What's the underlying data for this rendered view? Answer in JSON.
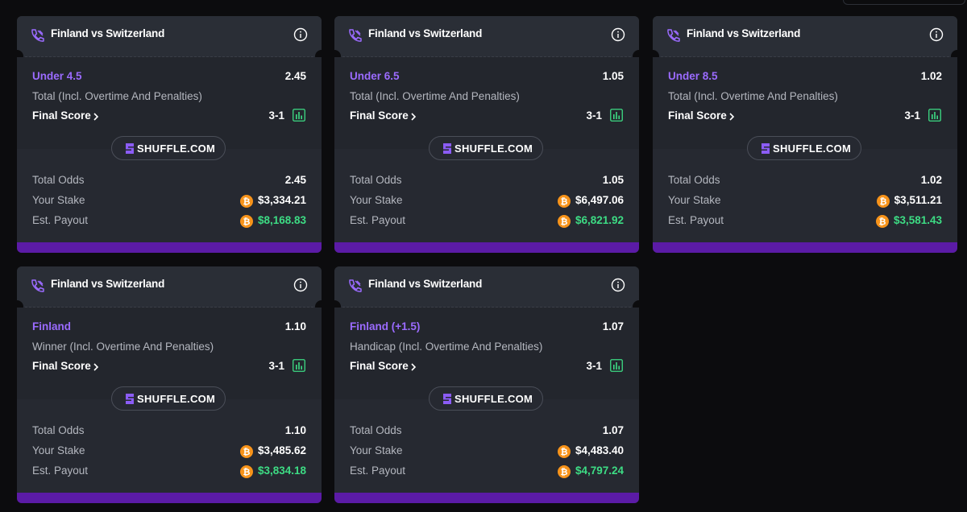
{
  "brand_color": "#5b1ba6",
  "accent_purple": "#9b6bff",
  "payout_green": "#3ddc84",
  "icons": {
    "ticket": "ticket-icon",
    "info": "info-icon",
    "chevron": "chevron-right-icon",
    "stats": "bar-chart-icon",
    "brand_logo": "shuffle-logo-icon",
    "currency": "bitcoin-coin-icon"
  },
  "cards": [
    {
      "match": "Finland vs Switzerland",
      "selection": "Under 4.5",
      "selection_odds": "2.45",
      "market": "Total (Incl. Overtime And Penalties)",
      "final_score_label": "Final Score",
      "final_score": "3-1",
      "brand": "SHUFFLE.COM",
      "total_odds_label": "Total Odds",
      "total_odds": "2.45",
      "stake_label": "Your Stake",
      "stake": "$3,334.21",
      "payout_label": "Est. Payout",
      "payout": "$8,168.83"
    },
    {
      "match": "Finland vs Switzerland",
      "selection": "Under 6.5",
      "selection_odds": "1.05",
      "market": "Total (Incl. Overtime And Penalties)",
      "final_score_label": "Final Score",
      "final_score": "3-1",
      "brand": "SHUFFLE.COM",
      "total_odds_label": "Total Odds",
      "total_odds": "1.05",
      "stake_label": "Your Stake",
      "stake": "$6,497.06",
      "payout_label": "Est. Payout",
      "payout": "$6,821.92"
    },
    {
      "match": "Finland vs Switzerland",
      "selection": "Under 8.5",
      "selection_odds": "1.02",
      "market": "Total (Incl. Overtime And Penalties)",
      "final_score_label": "Final Score",
      "final_score": "3-1",
      "brand": "SHUFFLE.COM",
      "total_odds_label": "Total Odds",
      "total_odds": "1.02",
      "stake_label": "Your Stake",
      "stake": "$3,511.21",
      "payout_label": "Est. Payout",
      "payout": "$3,581.43"
    },
    {
      "match": "Finland vs Switzerland",
      "selection": "Finland",
      "selection_odds": "1.10",
      "market": "Winner (Incl. Overtime And Penalties)",
      "final_score_label": "Final Score",
      "final_score": "3-1",
      "brand": "SHUFFLE.COM",
      "total_odds_label": "Total Odds",
      "total_odds": "1.10",
      "stake_label": "Your Stake",
      "stake": "$3,485.62",
      "payout_label": "Est. Payout",
      "payout": "$3,834.18"
    },
    {
      "match": "Finland vs Switzerland",
      "selection": "Finland (+1.5)",
      "selection_odds": "1.07",
      "market": "Handicap (Incl. Overtime And Penalties)",
      "final_score_label": "Final Score",
      "final_score": "3-1",
      "brand": "SHUFFLE.COM",
      "total_odds_label": "Total Odds",
      "total_odds": "1.07",
      "stake_label": "Your Stake",
      "stake": "$4,483.40",
      "payout_label": "Est. Payout",
      "payout": "$4,797.24"
    }
  ]
}
